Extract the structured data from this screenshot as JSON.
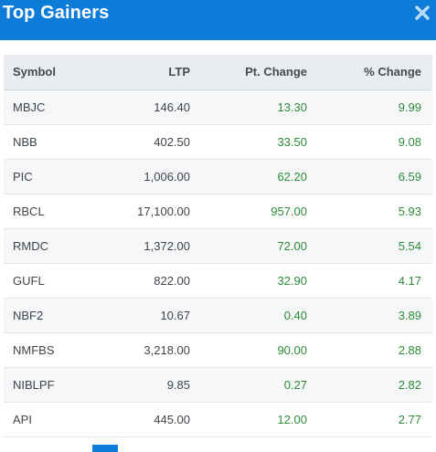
{
  "modal": {
    "title": "Top Gainers",
    "close_icon": "close-icon"
  },
  "table": {
    "headers": {
      "symbol": "Symbol",
      "ltp": "LTP",
      "pt_change": "Pt. Change",
      "pct_change": "% Change"
    },
    "rows": [
      {
        "symbol": "MBJC",
        "ltp": "146.40",
        "pt_change": "13.30",
        "pct_change": "9.99"
      },
      {
        "symbol": "NBB",
        "ltp": "402.50",
        "pt_change": "33.50",
        "pct_change": "9.08"
      },
      {
        "symbol": "PIC",
        "ltp": "1,006.00",
        "pt_change": "62.20",
        "pct_change": "6.59"
      },
      {
        "symbol": "RBCL",
        "ltp": "17,100.00",
        "pt_change": "957.00",
        "pct_change": "5.93"
      },
      {
        "symbol": "RMDC",
        "ltp": "1,372.00",
        "pt_change": "72.00",
        "pct_change": "5.54"
      },
      {
        "symbol": "GUFL",
        "ltp": "822.00",
        "pt_change": "32.90",
        "pct_change": "4.17"
      },
      {
        "symbol": "NBF2",
        "ltp": "10.67",
        "pt_change": "0.40",
        "pct_change": "3.89"
      },
      {
        "symbol": "NMFBS",
        "ltp": "3,218.00",
        "pt_change": "90.00",
        "pct_change": "2.88"
      },
      {
        "symbol": "NIBLPF",
        "ltp": "9.85",
        "pt_change": "0.27",
        "pct_change": "2.82"
      },
      {
        "symbol": "API",
        "ltp": "445.00",
        "pt_change": "12.00",
        "pct_change": "2.77"
      }
    ]
  },
  "colors": {
    "header_bg": "#0d7bd8",
    "gain_text": "#2e8b3a"
  }
}
